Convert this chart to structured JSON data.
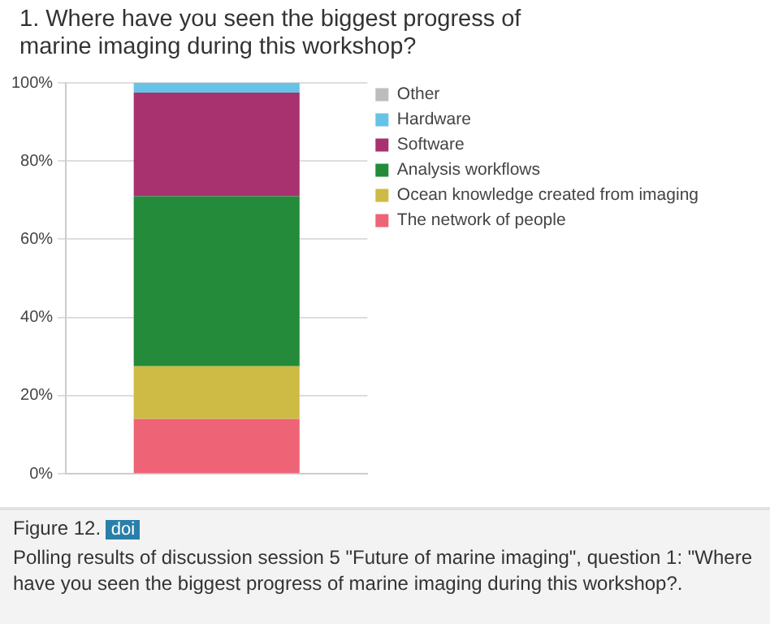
{
  "chart_data": {
    "type": "bar",
    "title": "1.  Where have you seen the biggest progress of marine imaging during this workshop?",
    "categories": [
      null
    ],
    "stacked": true,
    "series": [
      {
        "name": "The network of people",
        "color": "#ef6377",
        "values": [
          14
        ]
      },
      {
        "name": "Ocean knowledge created from imaging",
        "color": "#cdbb45",
        "values": [
          13.5
        ]
      },
      {
        "name": "Analysis workflows",
        "color": "#238b3a",
        "values": [
          43.5
        ]
      },
      {
        "name": "Software",
        "color": "#a8316f",
        "values": [
          26.5
        ]
      },
      {
        "name": "Hardware",
        "color": "#66c3e6",
        "values": [
          2.5
        ]
      },
      {
        "name": "Other",
        "color": "#bdbdbd",
        "values": [
          0
        ]
      }
    ],
    "ylim": [
      0,
      100
    ],
    "yticks": [
      {
        "value": 0,
        "label": "0%"
      },
      {
        "value": 20,
        "label": "20%"
      },
      {
        "value": 40,
        "label": "40%"
      },
      {
        "value": 60,
        "label": "60%"
      },
      {
        "value": 80,
        "label": "80%"
      },
      {
        "value": 100,
        "label": "100%"
      }
    ],
    "grid": "y",
    "legend": "top right",
    "annotations": [
      "Figure 12.",
      "doi",
      "Polling results of discussion session 5 \"Future of marine imaging\", question 1: \"Where have you seen the biggest progress of marine imaging during this workshop?."
    ]
  }
}
